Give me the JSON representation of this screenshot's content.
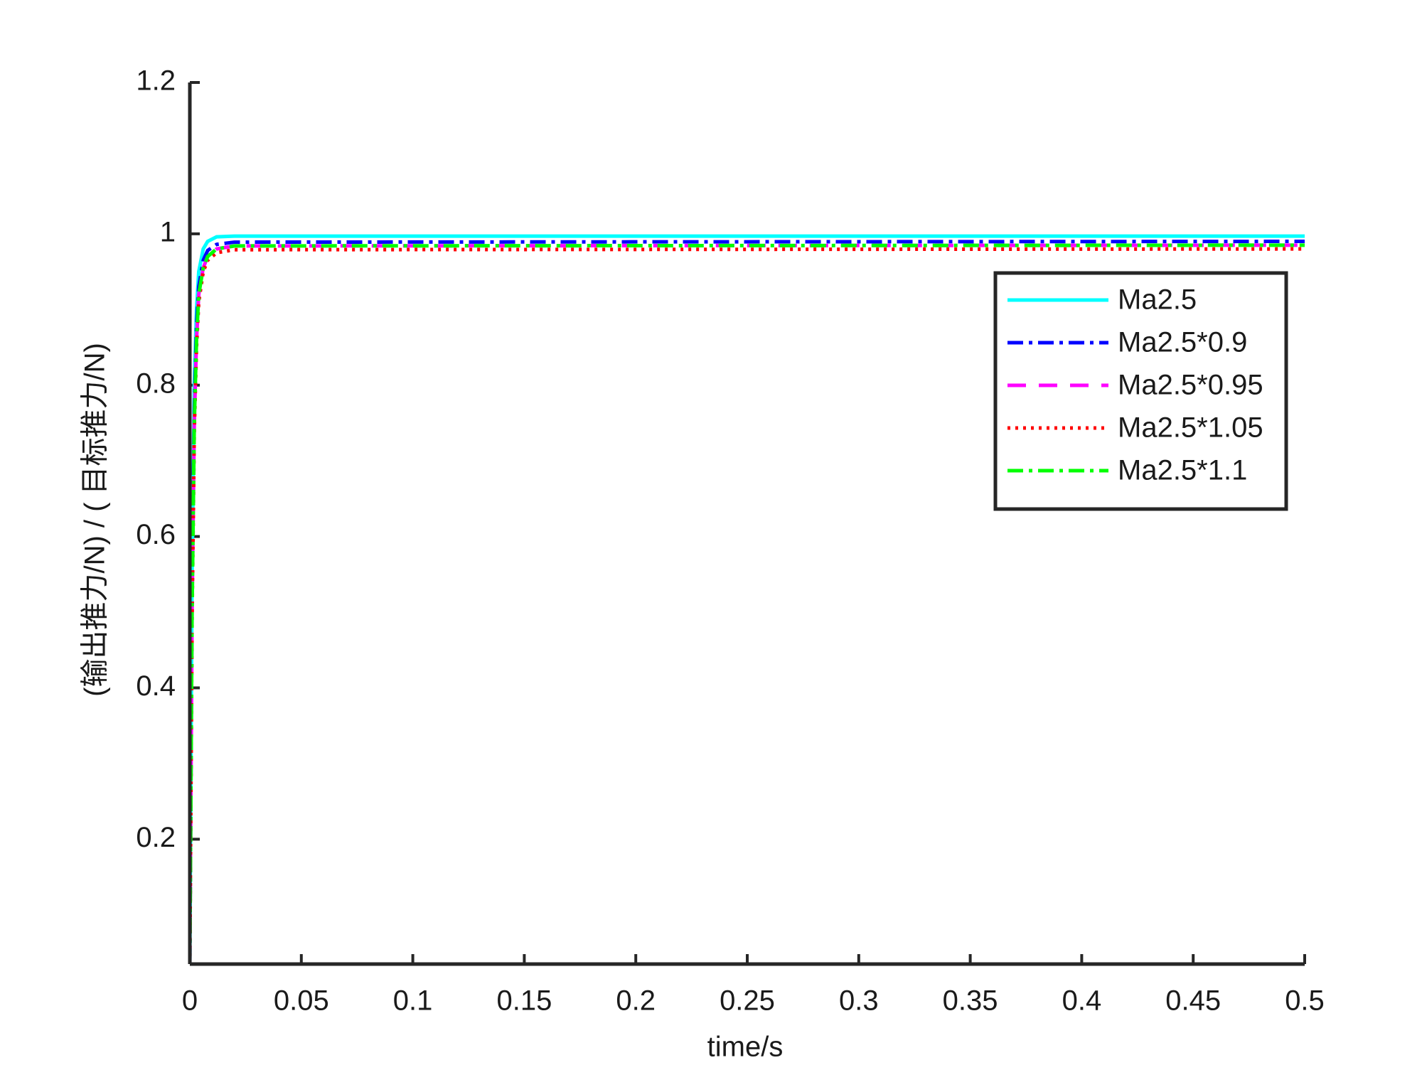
{
  "chart_data": {
    "type": "line",
    "x_label": "time/s",
    "y_label": "(输出推力/N) / ( 目标推力/N)",
    "x": [
      0,
      0.0005,
      0.001,
      0.002,
      0.003,
      0.004,
      0.006,
      0.008,
      0.012,
      0.02,
      0.5
    ],
    "series": [
      {
        "name": "Ma2.5",
        "color": "#00ffff",
        "linestyle": "solid",
        "values": [
          0.035,
          0.3,
          0.55,
          0.8,
          0.9,
          0.95,
          0.98,
          0.99,
          0.996,
          0.997,
          0.997
        ]
      },
      {
        "name": "Ma2.5*0.9",
        "color": "#0000ff",
        "linestyle": "dashdot",
        "values": [
          0.035,
          0.28,
          0.52,
          0.77,
          0.88,
          0.93,
          0.965,
          0.978,
          0.986,
          0.989,
          0.99
        ]
      },
      {
        "name": "Ma2.5*0.95",
        "color": "#ff00ff",
        "linestyle": "dashed",
        "values": [
          0.035,
          0.27,
          0.5,
          0.75,
          0.86,
          0.92,
          0.955,
          0.97,
          0.98,
          0.984,
          0.985
        ]
      },
      {
        "name": "Ma2.5*1.05",
        "color": "#ff0000",
        "linestyle": "dotted",
        "values": [
          0.035,
          0.26,
          0.49,
          0.74,
          0.85,
          0.91,
          0.95,
          0.965,
          0.975,
          0.979,
          0.98
        ]
      },
      {
        "name": "Ma2.5*1.1",
        "color": "#00ff00",
        "linestyle": "dashdot",
        "values": [
          0.035,
          0.27,
          0.5,
          0.75,
          0.86,
          0.92,
          0.955,
          0.97,
          0.98,
          0.984,
          0.985
        ]
      }
    ],
    "xlim": [
      0,
      0.5
    ],
    "ylim": [
      0.035,
      1.2
    ],
    "xticks": [
      0,
      0.05,
      0.1,
      0.15,
      0.2,
      0.25,
      0.3,
      0.35,
      0.4,
      0.45,
      0.5
    ],
    "yticks": [
      0.2,
      0.4,
      0.6,
      0.8,
      1,
      1.2
    ],
    "grid": false,
    "legend": "upper right"
  }
}
